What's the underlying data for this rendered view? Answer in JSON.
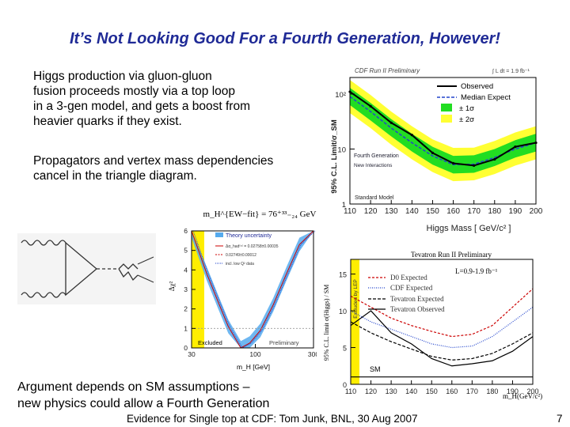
{
  "slide": {
    "title": "It’s Not Looking Good For a Fourth Generation, However!",
    "paragraph1": [
      "Higgs production via gluon-gluon",
      "fusion proceeds mostly via a top loop",
      "in a 3-gen model, and gets a boost from",
      "heavier quarks if they exist."
    ],
    "paragraph2": [
      "Propagators and vertex mass dependencies",
      "cancel in the triangle diagram."
    ],
    "paragraph3": [
      "Argument depends on SM assumptions –",
      "new physics could allow a Fourth Generation"
    ],
    "footer": "Evidence for Single top at CDF: Tom Junk, BNL, 30 Aug 2007",
    "page_number": "7"
  },
  "colors": {
    "title": "#1f2a96",
    "band1": "#22dd22",
    "band2": "#ffff33",
    "observed": "#000000",
    "expected": "#2244cc",
    "chi2_band": "#55aaee",
    "excluded": "#ffee00",
    "d0": "#cc0000"
  },
  "chart_data": [
    {
      "type": "line",
      "title": "CDF Run II Preliminary",
      "lumi_label": "∫ L dt = 1.9 fb⁻¹",
      "xlabel": "Higgs Mass [ GeV/c² ]",
      "ylabel": "95% C.L. Limit/σ_SM",
      "x_ticks": [
        "110",
        "120",
        "130",
        "140",
        "150",
        "160",
        "170",
        "180",
        "190",
        "200"
      ],
      "y_ticks": [
        "1",
        "10",
        "10²"
      ],
      "y_scale": "log",
      "xlim": [
        110,
        200
      ],
      "ylim": [
        1,
        200
      ],
      "legend": [
        "Observed",
        "Median Expect",
        "± 1σ",
        "± 2σ"
      ],
      "annotations": [
        "Fourth Generation",
        "New Interactions",
        "Standard Model"
      ],
      "x": [
        110,
        120,
        130,
        140,
        150,
        160,
        170,
        180,
        190,
        200
      ],
      "series": [
        {
          "name": "Observed",
          "values": [
            110,
            60,
            30,
            18,
            8.5,
            5.5,
            5,
            6.5,
            11,
            13
          ]
        },
        {
          "name": "Median Expect",
          "values": [
            90,
            48,
            24,
            13,
            7.5,
            5.2,
            5.3,
            7,
            10,
            13
          ]
        },
        {
          "name": "± 1σ",
          "low": [
            63,
            33,
            17,
            9,
            5.2,
            3.6,
            3.7,
            4.9,
            7,
            9
          ],
          "high": [
            130,
            69,
            35,
            19,
            11,
            7.5,
            7.7,
            10,
            14.5,
            19
          ]
        },
        {
          "name": "± 2σ",
          "low": [
            45,
            24,
            12,
            6.5,
            3.8,
            2.6,
            2.7,
            3.5,
            5,
            6.5
          ],
          "high": [
            180,
            96,
            48,
            26,
            15,
            10.5,
            10.6,
            14,
            20,
            26
          ]
        }
      ]
    },
    {
      "type": "line",
      "title": "Tevatron Run II Preliminary",
      "lumi_label": "L=0.9-1.9 fb⁻¹",
      "xlabel": "m_H(GeV/c²)",
      "ylabel": "95% C.L. limit σ(Higgs) / SM",
      "x_ticks": [
        "110",
        "120",
        "130",
        "140",
        "150",
        "160",
        "170",
        "180",
        "190",
        "200"
      ],
      "y_ticks": [
        "0",
        "5",
        "10",
        "15"
      ],
      "xlim": [
        110,
        200
      ],
      "ylim": [
        0,
        17
      ],
      "legend": [
        "D0 Expected",
        "CDF Expected",
        "Tevatron Expected",
        "Tevatron Observed"
      ],
      "annotations": [
        "Excluded by LEP",
        "SM"
      ],
      "x": [
        110,
        120,
        130,
        140,
        150,
        160,
        170,
        180,
        190,
        200
      ],
      "series": [
        {
          "name": "D0 Expected",
          "values": [
            12,
            10.5,
            9,
            8,
            7.2,
            6.5,
            6.8,
            8,
            10.5,
            13
          ]
        },
        {
          "name": "CDF Expected",
          "values": [
            10,
            8.5,
            7.5,
            6.5,
            5.5,
            5,
            5.2,
            6.5,
            8.5,
            10.5
          ]
        },
        {
          "name": "Tevatron Expected",
          "values": [
            8.5,
            7,
            5.8,
            4.8,
            3.8,
            3.3,
            3.5,
            4.2,
            5.5,
            7
          ]
        },
        {
          "name": "Tevatron Observed",
          "values": [
            8,
            10,
            7,
            5.5,
            3.5,
            2.5,
            2.8,
            3.2,
            4.5,
            6.5
          ]
        }
      ]
    },
    {
      "type": "line",
      "title": "",
      "header": "m_H^{EW−fit} = 76⁺³³₋₂₄ GeV",
      "xlabel": "m_H [GeV]",
      "ylabel": "Δχ²",
      "x_ticks": [
        "30",
        "100",
        "300"
      ],
      "y_ticks": [
        "0",
        "1",
        "2",
        "3",
        "4",
        "5",
        "6"
      ],
      "x_scale": "log",
      "xlim": [
        30,
        300
      ],
      "ylim": [
        0,
        6
      ],
      "legend": [
        "Theory uncertainty",
        "Δα_had⁽⁵⁾ = 0.02758±0.00035",
        "0.02749±0.00012",
        "incl. low Q² data"
      ],
      "annotations": [
        "Excluded",
        "Preliminary"
      ],
      "x": [
        30,
        40,
        50,
        60,
        76,
        90,
        110,
        140,
        180,
        230,
        300
      ],
      "series": [
        {
          "name": "fit",
          "values": [
            6,
            3.8,
            2.3,
            1.1,
            0,
            0.25,
            0.9,
            2.2,
            3.8,
            5.3,
            6.5
          ]
        }
      ]
    }
  ]
}
